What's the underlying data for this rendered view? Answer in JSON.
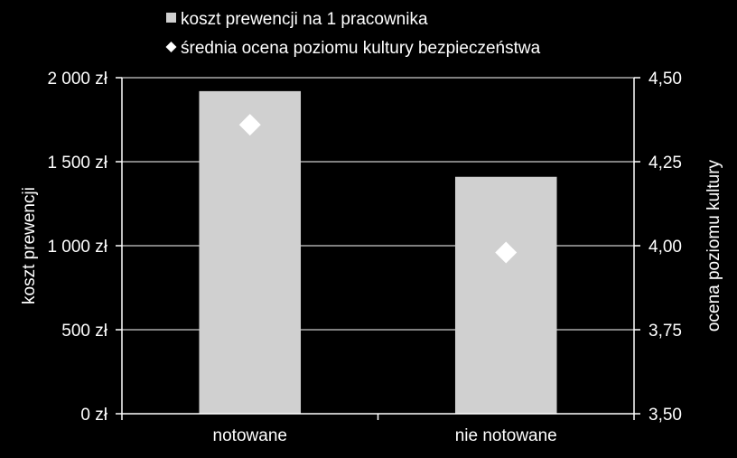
{
  "chart_data": {
    "type": "bar",
    "categories": [
      "notowane",
      "nie notowane"
    ],
    "series": [
      {
        "name": "koszt prewencji na 1 pracownika",
        "kind": "bar",
        "axis": "left",
        "values": [
          1920,
          1410
        ],
        "color": "#d0d0d0",
        "marker": "square"
      },
      {
        "name": "średnia ocena poziomu kultury bezpieczeństwa",
        "kind": "scatter",
        "axis": "right",
        "values": [
          4.36,
          3.98
        ],
        "color": "#ffffff",
        "marker": "diamond"
      }
    ],
    "y_left": {
      "label": "koszt prewencji",
      "ylim": [
        0,
        2000
      ],
      "ticks": [
        0,
        500,
        1000,
        1500,
        2000
      ],
      "tick_labels": [
        "0 zł",
        "500 zł",
        "1 000 zł",
        "1 500 zł",
        "2 000 zł"
      ]
    },
    "y_right": {
      "label": "ocena poziomu  kultury",
      "ylim": [
        3.5,
        4.5
      ],
      "ticks": [
        3.5,
        3.75,
        4.0,
        4.25,
        4.5
      ],
      "tick_labels": [
        "3,50",
        "3,75",
        "4,00",
        "4,25",
        "4,50"
      ]
    },
    "grid": true,
    "legend_position": "top",
    "background": "#000000",
    "gridline_color": "#ffffff"
  }
}
